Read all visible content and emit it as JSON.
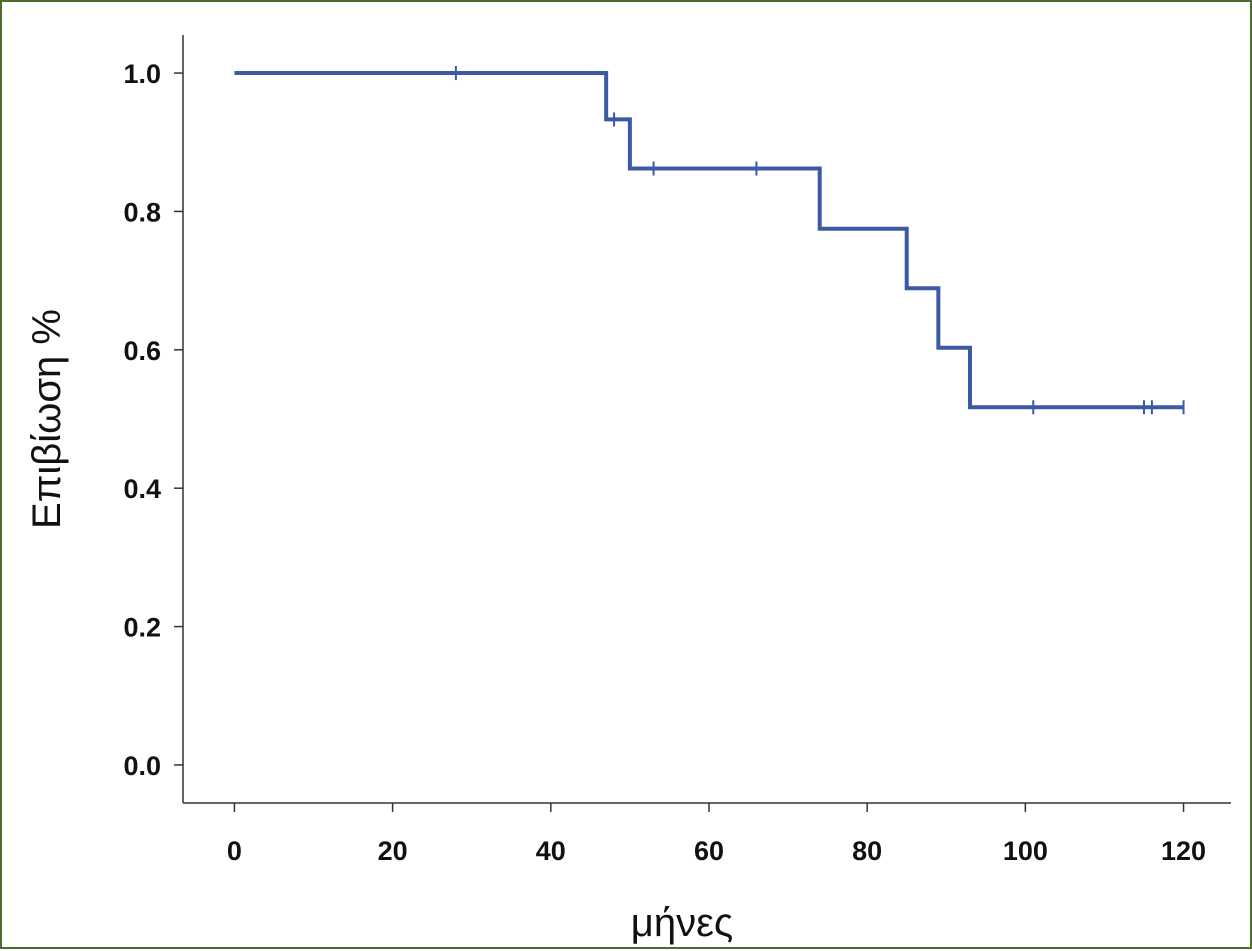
{
  "chart_data": {
    "type": "line",
    "subtype": "kaplan-meier step",
    "title": "",
    "xlabel": "μήνες",
    "ylabel": "Επιβίωση %",
    "xlim": [
      -6.5,
      126
    ],
    "ylim": [
      -0.055,
      1.055
    ],
    "xticks": [
      0,
      20,
      40,
      60,
      80,
      100,
      120
    ],
    "yticks": [
      0.0,
      0.2,
      0.4,
      0.6,
      0.8,
      1.0
    ],
    "xtick_labels": [
      "0",
      "20",
      "40",
      "60",
      "80",
      "100",
      "120"
    ],
    "ytick_labels": [
      "0.0",
      "0.2",
      "0.4",
      "0.6",
      "0.8",
      "1.0"
    ],
    "grid": false,
    "legend": "none",
    "series_color": "#3c59a6",
    "series": [
      {
        "steps": [
          {
            "x": 0,
            "y": 1.0
          },
          {
            "x": 47,
            "y": 0.933
          },
          {
            "x": 50,
            "y": 0.862
          },
          {
            "x": 74,
            "y": 0.775
          },
          {
            "x": 85,
            "y": 0.689
          },
          {
            "x": 89,
            "y": 0.603
          },
          {
            "x": 93,
            "y": 0.517
          }
        ],
        "end_x": 120,
        "censored": [
          {
            "x": 28,
            "y": 1.0
          },
          {
            "x": 48,
            "y": 0.933
          },
          {
            "x": 53,
            "y": 0.862
          },
          {
            "x": 66,
            "y": 0.862
          },
          {
            "x": 101,
            "y": 0.517
          },
          {
            "x": 115,
            "y": 0.517
          },
          {
            "x": 116,
            "y": 0.517
          },
          {
            "x": 120,
            "y": 0.517
          }
        ]
      }
    ]
  }
}
